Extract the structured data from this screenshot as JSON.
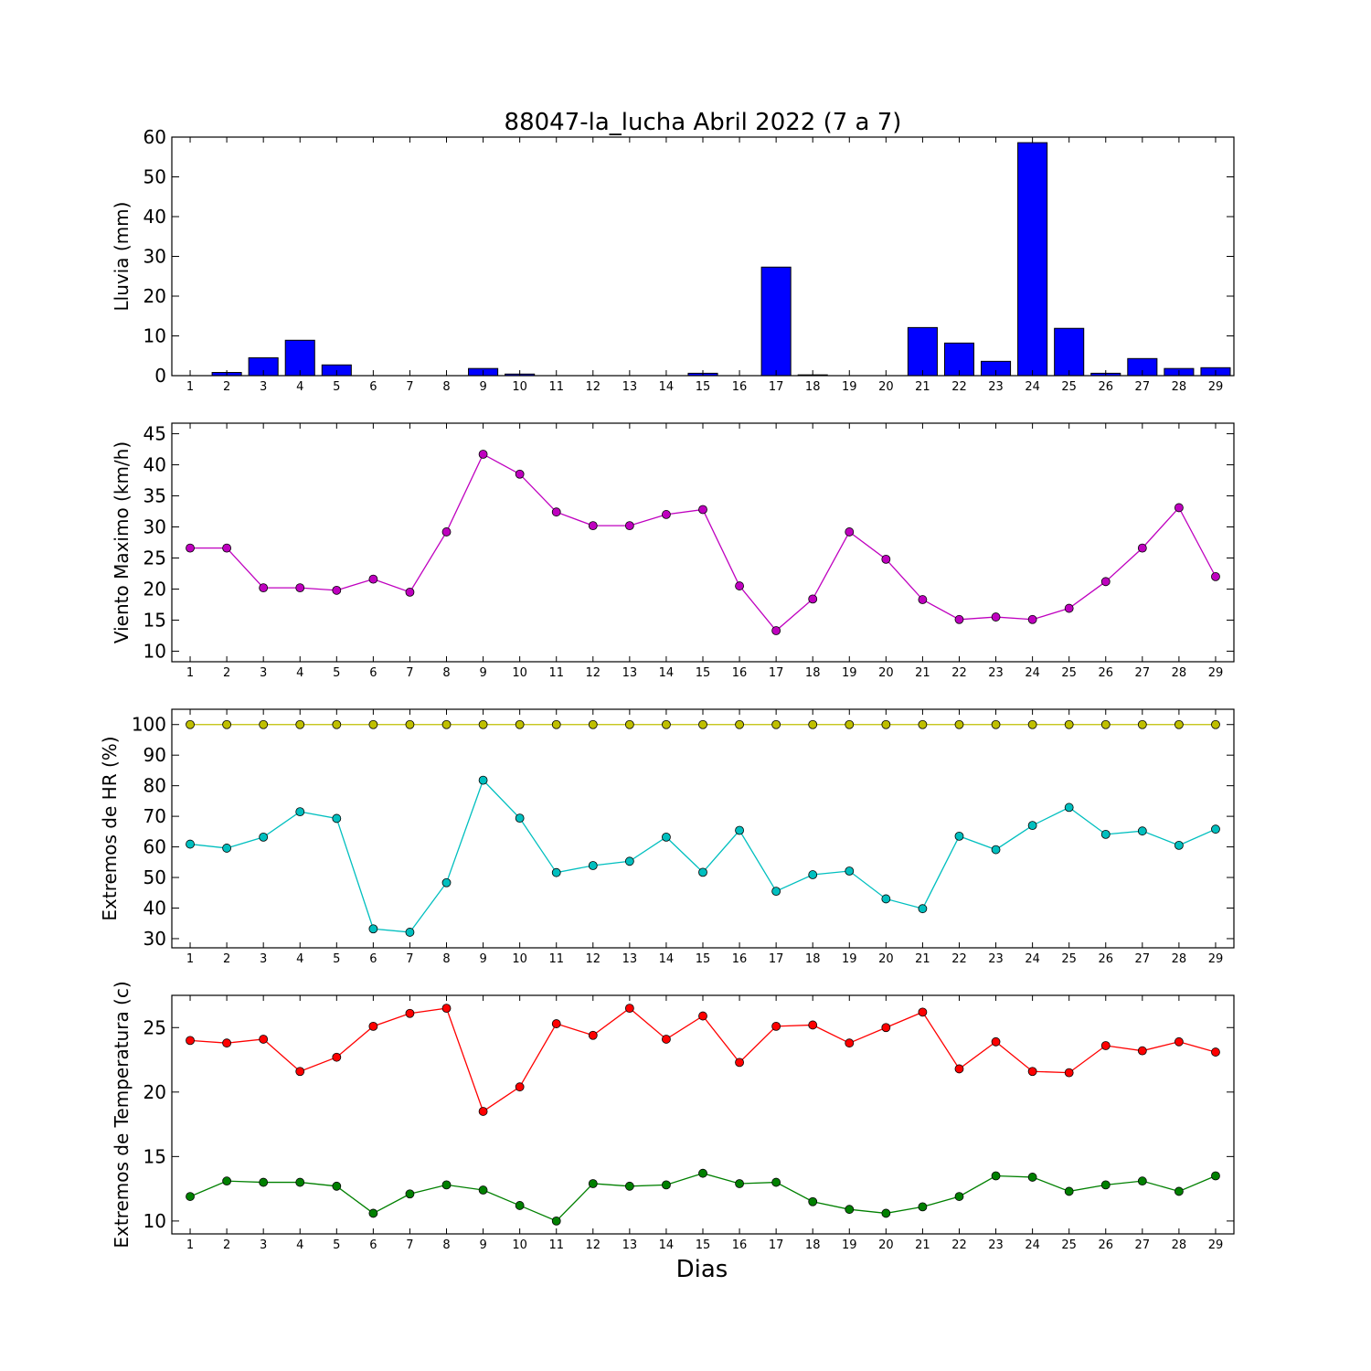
{
  "figure": {
    "title": "88047-la_lucha Abril 2022  (7 a 7)",
    "xlabel": "Dias"
  },
  "chart_data": [
    {
      "type": "bar",
      "ylabel": "Lluvia (mm)",
      "ylim": [
        0,
        60
      ],
      "yticks": [
        0,
        10,
        20,
        30,
        40,
        50,
        60
      ],
      "categories": [
        "1",
        "2",
        "3",
        "4",
        "5",
        "6",
        "7",
        "8",
        "9",
        "10",
        "11",
        "12",
        "13",
        "14",
        "15",
        "16",
        "17",
        "18",
        "19",
        "20",
        "21",
        "22",
        "23",
        "24",
        "25",
        "26",
        "27",
        "28",
        "29"
      ],
      "series": [
        {
          "color": "#0000ff",
          "values": [
            0,
            0.8,
            4.5,
            8.9,
            2.7,
            0,
            0,
            0,
            1.8,
            0.4,
            0,
            0,
            0,
            0,
            0.6,
            0,
            27.3,
            0.2,
            0,
            0,
            12.1,
            8.2,
            3.6,
            58.6,
            11.9,
            0.6,
            4.3,
            1.8,
            2.0
          ]
        }
      ],
      "grid": false
    },
    {
      "type": "line",
      "ylabel": "Viento Maximo (km/h)",
      "ylim": [
        8.3,
        46.7
      ],
      "yticks": [
        10,
        15,
        20,
        25,
        30,
        35,
        40,
        45
      ],
      "categories": [
        "1",
        "2",
        "3",
        "4",
        "5",
        "6",
        "7",
        "8",
        "9",
        "10",
        "11",
        "12",
        "13",
        "14",
        "15",
        "16",
        "17",
        "18",
        "19",
        "20",
        "21",
        "22",
        "23",
        "24",
        "25",
        "26",
        "27",
        "28",
        "29"
      ],
      "series": [
        {
          "color": "#bf00bf",
          "values": [
            26.6,
            26.6,
            20.2,
            20.2,
            19.8,
            21.6,
            19.5,
            29.2,
            41.7,
            38.5,
            32.4,
            30.2,
            30.2,
            32.0,
            32.8,
            20.5,
            13.3,
            18.4,
            29.2,
            24.8,
            18.3,
            15.1,
            15.5,
            15.1,
            16.9,
            21.2,
            26.6,
            33.1,
            22.0
          ]
        }
      ],
      "grid": false
    },
    {
      "type": "line",
      "ylabel": "Extremos de HR (%)",
      "ylim": [
        27,
        105
      ],
      "yticks": [
        30,
        40,
        50,
        60,
        70,
        80,
        90,
        100
      ],
      "categories": [
        "1",
        "2",
        "3",
        "4",
        "5",
        "6",
        "7",
        "8",
        "9",
        "10",
        "11",
        "12",
        "13",
        "14",
        "15",
        "16",
        "17",
        "18",
        "19",
        "20",
        "21",
        "22",
        "23",
        "24",
        "25",
        "26",
        "27",
        "28",
        "29"
      ],
      "series": [
        {
          "color": "#bfbf00",
          "values": [
            100,
            100,
            100,
            100,
            100,
            100,
            100,
            100,
            100,
            100,
            100,
            100,
            100,
            100,
            100,
            100,
            100,
            100,
            100,
            100,
            100,
            100,
            100,
            100,
            100,
            100,
            100,
            100,
            100
          ]
        },
        {
          "color": "#00bfbf",
          "values": [
            60.9,
            59.6,
            63.2,
            71.5,
            69.3,
            33.2,
            32.1,
            48.3,
            81.8,
            69.4,
            51.6,
            53.9,
            55.3,
            63.2,
            51.7,
            65.4,
            45.5,
            50.9,
            52.1,
            43.0,
            39.8,
            63.5,
            59.1,
            67.0,
            72.9,
            64.1,
            65.2,
            60.5,
            65.8
          ]
        }
      ],
      "grid": false
    },
    {
      "type": "line",
      "ylabel": "Extremos de Temperatura (c)",
      "ylim": [
        9.0,
        27.5
      ],
      "yticks": [
        10,
        15,
        20,
        25
      ],
      "categories": [
        "1",
        "2",
        "3",
        "4",
        "5",
        "6",
        "7",
        "8",
        "9",
        "10",
        "11",
        "12",
        "13",
        "14",
        "15",
        "16",
        "17",
        "18",
        "19",
        "20",
        "21",
        "22",
        "23",
        "24",
        "25",
        "26",
        "27",
        "28",
        "29"
      ],
      "series": [
        {
          "color": "#ff0000",
          "values": [
            24.0,
            23.8,
            24.1,
            21.6,
            22.7,
            25.1,
            26.1,
            26.5,
            18.5,
            20.4,
            25.3,
            24.4,
            26.5,
            24.1,
            25.9,
            22.3,
            25.1,
            25.2,
            23.8,
            25.0,
            26.2,
            21.8,
            23.9,
            21.6,
            21.5,
            23.6,
            23.2,
            23.9,
            23.1
          ]
        },
        {
          "color": "#008000",
          "values": [
            11.9,
            13.1,
            13.0,
            13.0,
            12.7,
            10.6,
            12.1,
            12.8,
            12.4,
            11.2,
            10.0,
            12.9,
            12.7,
            12.8,
            13.7,
            12.9,
            13.0,
            11.5,
            10.9,
            10.6,
            11.1,
            11.9,
            13.5,
            13.4,
            12.3,
            12.8,
            13.1,
            12.3,
            13.5
          ]
        }
      ],
      "grid": false
    }
  ]
}
